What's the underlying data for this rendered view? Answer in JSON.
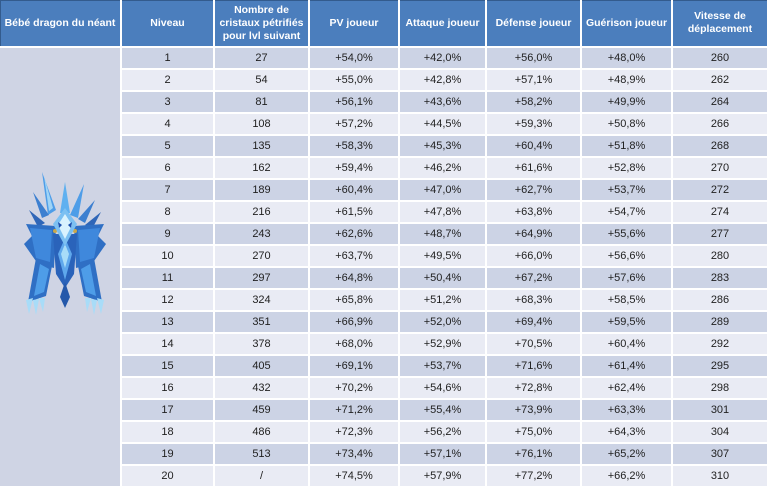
{
  "table": {
    "entity_header": "Bébé dragon du néant",
    "columns": [
      "Niveau",
      "Nombre de\ncristaux pétrifiés\npour lvl suivant",
      "PV joueur",
      "Attaque joueur",
      "Défense joueur",
      "Guérison joueur",
      "Vitesse de\ndéplacement"
    ],
    "rows": [
      [
        "1",
        "27",
        "+54,0%",
        "+42,0%",
        "+56,0%",
        "+48,0%",
        "260"
      ],
      [
        "2",
        "54",
        "+55,0%",
        "+42,8%",
        "+57,1%",
        "+48,9%",
        "262"
      ],
      [
        "3",
        "81",
        "+56,1%",
        "+43,6%",
        "+58,2%",
        "+49,9%",
        "264"
      ],
      [
        "4",
        "108",
        "+57,2%",
        "+44,5%",
        "+59,3%",
        "+50,8%",
        "266"
      ],
      [
        "5",
        "135",
        "+58,3%",
        "+45,3%",
        "+60,4%",
        "+51,8%",
        "268"
      ],
      [
        "6",
        "162",
        "+59,4%",
        "+46,2%",
        "+61,6%",
        "+52,8%",
        "270"
      ],
      [
        "7",
        "189",
        "+60,4%",
        "+47,0%",
        "+62,7%",
        "+53,7%",
        "272"
      ],
      [
        "8",
        "216",
        "+61,5%",
        "+47,8%",
        "+63,8%",
        "+54,7%",
        "274"
      ],
      [
        "9",
        "243",
        "+62,6%",
        "+48,7%",
        "+64,9%",
        "+55,6%",
        "277"
      ],
      [
        "10",
        "270",
        "+63,7%",
        "+49,5%",
        "+66,0%",
        "+56,6%",
        "280"
      ],
      [
        "11",
        "297",
        "+64,8%",
        "+50,4%",
        "+67,2%",
        "+57,6%",
        "283"
      ],
      [
        "12",
        "324",
        "+65,8%",
        "+51,2%",
        "+68,3%",
        "+58,5%",
        "286"
      ],
      [
        "13",
        "351",
        "+66,9%",
        "+52,0%",
        "+69,4%",
        "+59,5%",
        "289"
      ],
      [
        "14",
        "378",
        "+68,0%",
        "+52,9%",
        "+70,5%",
        "+60,4%",
        "292"
      ],
      [
        "15",
        "405",
        "+69,1%",
        "+53,7%",
        "+71,6%",
        "+61,4%",
        "295"
      ],
      [
        "16",
        "432",
        "+70,2%",
        "+54,6%",
        "+72,8%",
        "+62,4%",
        "298"
      ],
      [
        "17",
        "459",
        "+71,2%",
        "+55,4%",
        "+73,9%",
        "+63,3%",
        "301"
      ],
      [
        "18",
        "486",
        "+72,3%",
        "+56,2%",
        "+75,0%",
        "+64,3%",
        "304"
      ],
      [
        "19",
        "513",
        "+73,4%",
        "+57,1%",
        "+76,1%",
        "+65,2%",
        "307"
      ],
      [
        "20",
        "/",
        "+74,5%",
        "+57,9%",
        "+77,2%",
        "+66,2%",
        "310"
      ]
    ],
    "colors": {
      "header_bg": "#4b7ebd",
      "header_text": "#ffffff",
      "row_dark": "#ccd3e5",
      "row_light": "#e9ebf4",
      "grid_gap": "#ffffff",
      "body_text": "#1f1f1f",
      "dragon_cell_bg": "#cfd4e4",
      "dragon_blue_deep": "#1b4fae",
      "dragon_blue_mid": "#2e7de0",
      "dragon_blue_light": "#6fd0f8",
      "dragon_highlight": "#dff4fe"
    },
    "icons": {
      "dragon_image": "void-baby-dragon"
    }
  }
}
